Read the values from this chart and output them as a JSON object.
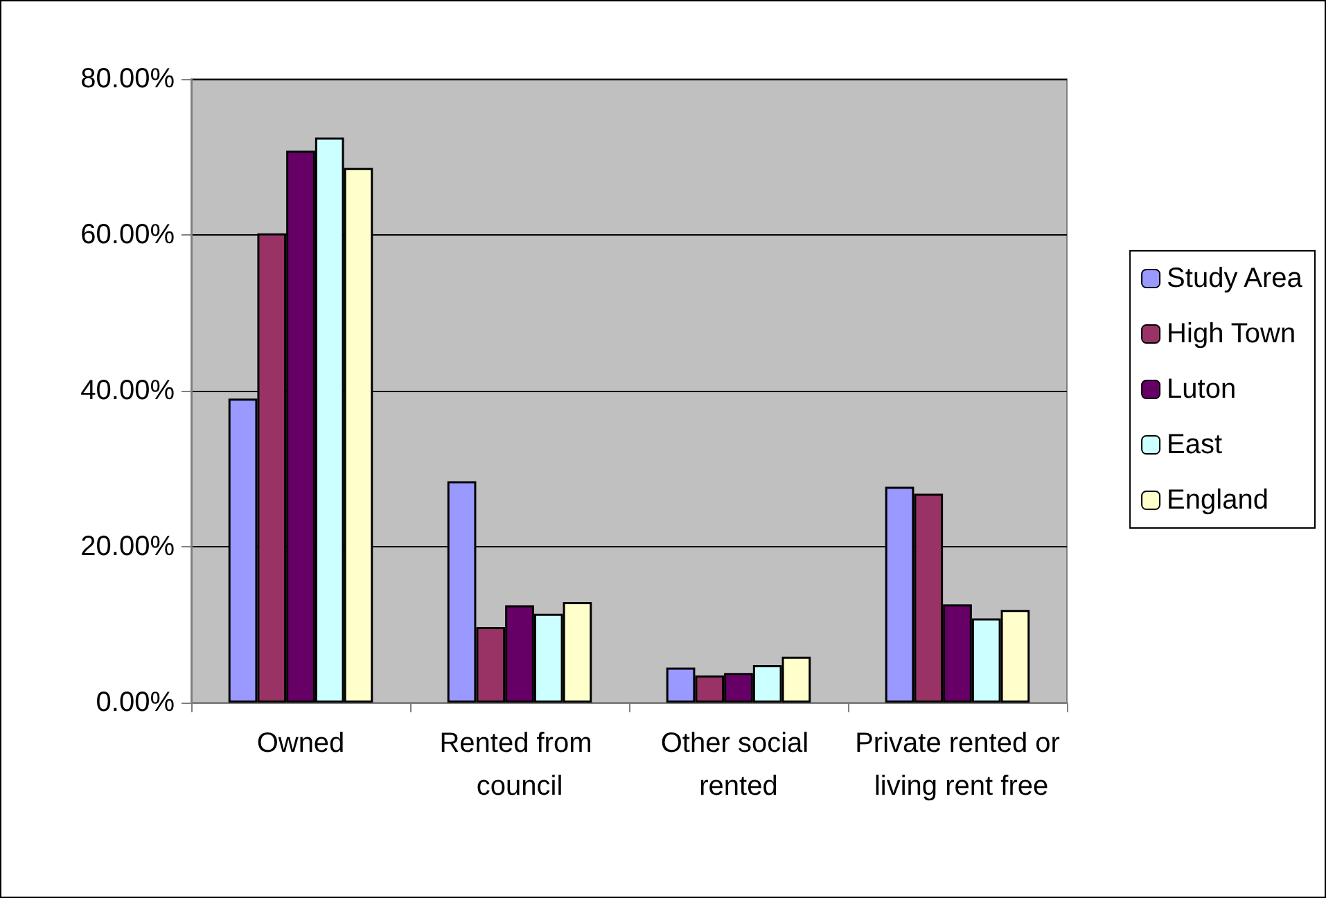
{
  "chart_data": {
    "type": "bar",
    "categories": [
      "Owned",
      "Rented from council",
      "Other social rented",
      "Private rented or living rent free"
    ],
    "series": [
      {
        "name": "Study Area",
        "color": "#9999ff",
        "values": [
          39.0,
          28.4,
          4.5,
          27.7
        ]
      },
      {
        "name": "High Town",
        "color": "#993366",
        "values": [
          60.2,
          9.7,
          3.5,
          26.8
        ]
      },
      {
        "name": "Luton",
        "color": "#660066",
        "values": [
          70.8,
          12.5,
          3.8,
          12.6
        ]
      },
      {
        "name": "East",
        "color": "#ccffff",
        "values": [
          72.5,
          11.4,
          4.8,
          10.8
        ]
      },
      {
        "name": "England",
        "color": "#ffffcc",
        "values": [
          68.6,
          12.9,
          5.9,
          11.9
        ]
      }
    ],
    "ylim": [
      0,
      80
    ],
    "yticks": [
      {
        "value": 0,
        "label": "0.00%"
      },
      {
        "value": 20,
        "label": "20.00%"
      },
      {
        "value": 40,
        "label": "40.00%"
      },
      {
        "value": 60,
        "label": "60.00%"
      },
      {
        "value": 80,
        "label": "80.00%"
      }
    ],
    "grid": "y",
    "legend": "right"
  }
}
